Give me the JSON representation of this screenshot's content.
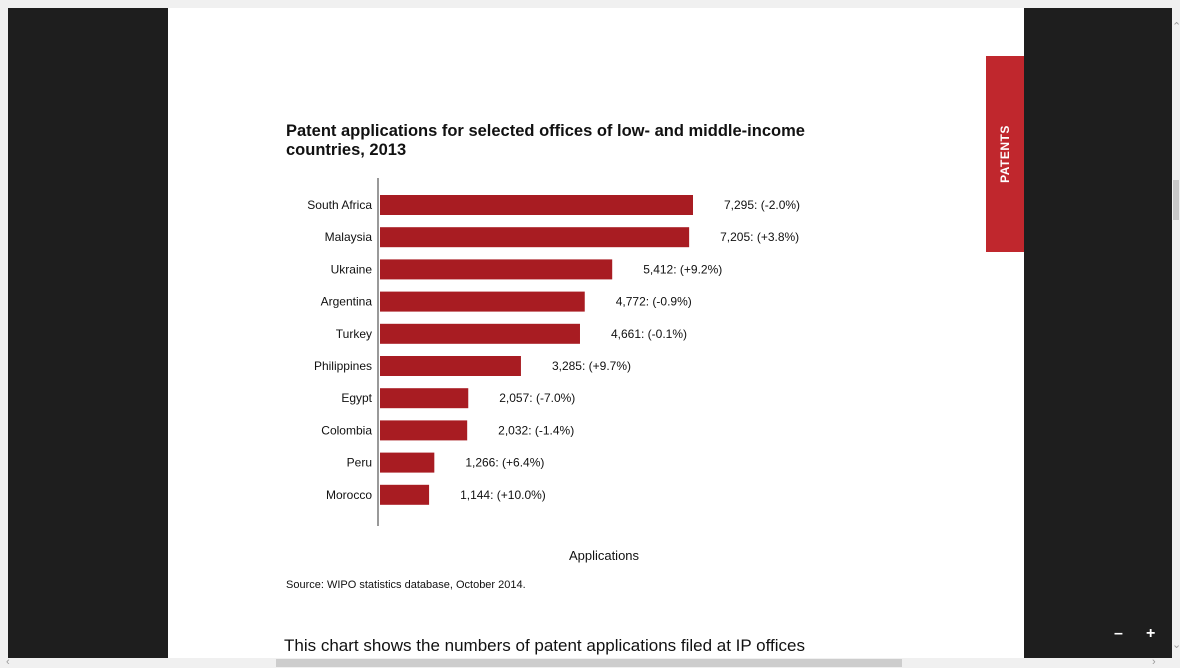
{
  "document": {
    "chart_title": "Patent applications for selected offices of low- and middle-income countries, 2013",
    "source": "Source: WIPO statistics database, October 2014.",
    "body_text": "This chart shows the numbers of patent applications filed at IP offices",
    "side_tab": "PATENTS"
  },
  "viewer": {
    "zoom_out_label": "–",
    "zoom_in_label": "+"
  },
  "colors": {
    "bar": "#a81c22",
    "tab": "#c0272d"
  },
  "chart_data": {
    "type": "bar",
    "orientation": "horizontal",
    "title": "Patent applications for selected offices of low- and middle-income countries, 2013",
    "xlabel": "Applications",
    "ylabel": "",
    "categories": [
      "South Africa",
      "Malaysia",
      "Ukraine",
      "Argentina",
      "Turkey",
      "Philippines",
      "Egypt",
      "Colombia",
      "Peru",
      "Morocco"
    ],
    "values": [
      7295,
      7205,
      5412,
      4772,
      4661,
      3285,
      2057,
      2032,
      1266,
      1144
    ],
    "data_labels": [
      "7,295: (-2.0%)",
      "7,205: (+3.8%)",
      "5,412: (+9.2%)",
      "4,772: (-0.9%)",
      "4,661: (-0.1%)",
      "3,285: (+9.7%)",
      "2,057: (-7.0%)",
      "2,032: (-1.4%)",
      "1,266: (+6.4%)",
      "1,144: (+10.0%)"
    ],
    "xlim": [
      0,
      7295
    ],
    "grid": false,
    "legend": false
  }
}
